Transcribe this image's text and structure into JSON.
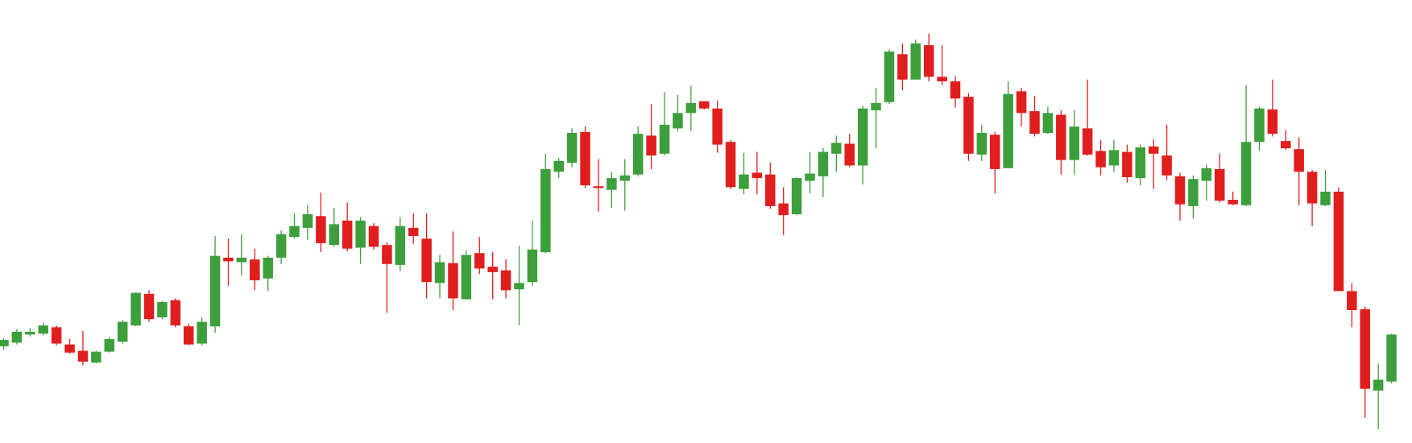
{
  "chart_data": {
    "type": "candlestick",
    "up_color": "#3c9f3c",
    "down_color": "#e01e1e",
    "ylim": [
      0,
      490
    ],
    "open": [
      107,
      111,
      120,
      121,
      128,
      109,
      102,
      89,
      101,
      112,
      130,
      165,
      139,
      158,
      129,
      110,
      129,
      205,
      200,
      203,
      182,
      205,
      228,
      238,
      251,
      219,
      246,
      216,
      240,
      219,
      197,
      238,
      226,
      177,
      199,
      159,
      210,
      195,
      191,
      170,
      178,
      211,
      300,
      310,
      344,
      284,
      280,
      290,
      297,
      340,
      320,
      348,
      365,
      378,
      370,
      333,
      281,
      299,
      297,
      265,
      253,
      290,
      295,
      320,
      331,
      307,
      368,
      377,
      430,
      402,
      440,
      405,
      400,
      383,
      319,
      341,
      304,
      389,
      367,
      343,
      363,
      313,
      348,
      323,
      307,
      322,
      293,
      328,
      318,
      295,
      262,
      290,
      303,
      269,
      263,
      333,
      369,
      334,
      325,
      300,
      263,
      278,
      168,
      148,
      58,
      68
    ],
    "high": [
      116,
      126,
      127,
      133,
      130,
      115,
      124,
      102,
      117,
      136,
      167,
      169,
      157,
      160,
      132,
      139,
      229,
      226,
      231,
      215,
      207,
      235,
      254,
      263,
      277,
      260,
      266,
      250,
      243,
      222,
      250,
      254,
      254,
      208,
      234,
      213,
      228,
      211,
      203,
      218,
      246,
      320,
      315,
      348,
      350,
      314,
      300,
      314,
      350,
      375,
      388,
      385,
      395,
      378,
      379,
      335,
      321,
      322,
      310,
      283,
      294,
      322,
      326,
      340,
      342,
      373,
      393,
      435,
      442,
      446,
      453,
      440,
      406,
      387,
      352,
      344,
      400,
      393,
      384,
      372,
      368,
      368,
      402,
      335,
      335,
      330,
      330,
      336,
      352,
      299,
      296,
      308,
      320,
      278,
      396,
      372,
      402,
      346,
      338,
      302,
      302,
      283,
      177,
      151,
      88,
      121
    ],
    "low": [
      103,
      109,
      118,
      119,
      108,
      99,
      86,
      88,
      100,
      110,
      129,
      134,
      137,
      128,
      108,
      108,
      122,
      174,
      185,
      169,
      168,
      198,
      226,
      225,
      211,
      217,
      212,
      198,
      214,
      144,
      190,
      220,
      160,
      160,
      147,
      159,
      187,
      159,
      160,
      130,
      174,
      210,
      293,
      305,
      282,
      256,
      260,
      257,
      295,
      303,
      318,
      345,
      345,
      369,
      321,
      281,
      275,
      275,
      259,
      230,
      252,
      276,
      272,
      300,
      305,
      286,
      326,
      375,
      390,
      402,
      400,
      396,
      371,
      312,
      312,
      276,
      304,
      350,
      339,
      342,
      297,
      297,
      318,
      296,
      300,
      288,
      285,
      281,
      291,
      246,
      248,
      268,
      266,
      263,
      262,
      323,
      339,
      324,
      263,
      240,
      262,
      168,
      128,
      28,
      15,
      66
    ],
    "close": [
      114,
      123,
      123,
      130,
      110,
      100,
      90,
      101,
      115,
      134,
      166,
      137,
      156,
      130,
      109,
      134,
      207,
      201,
      205,
      180,
      205,
      231,
      240,
      253,
      221,
      242,
      215,
      246,
      217,
      198,
      240,
      229,
      178,
      200,
      160,
      208,
      193,
      189,
      169,
      177,
      214,
      303,
      312,
      343,
      285,
      282,
      293,
      296,
      342,
      318,
      352,
      365,
      376,
      370,
      330,
      283,
      297,
      293,
      262,
      252,
      293,
      298,
      322,
      332,
      307,
      370,
      376,
      433,
      402,
      442,
      405,
      400,
      381,
      320,
      343,
      303,
      386,
      365,
      342,
      365,
      313,
      350,
      319,
      305,
      324,
      294,
      327,
      320,
      296,
      264,
      292,
      304,
      268,
      264,
      333,
      370,
      342,
      326,
      300,
      265,
      278,
      168,
      147,
      60,
      70,
      120
    ]
  }
}
